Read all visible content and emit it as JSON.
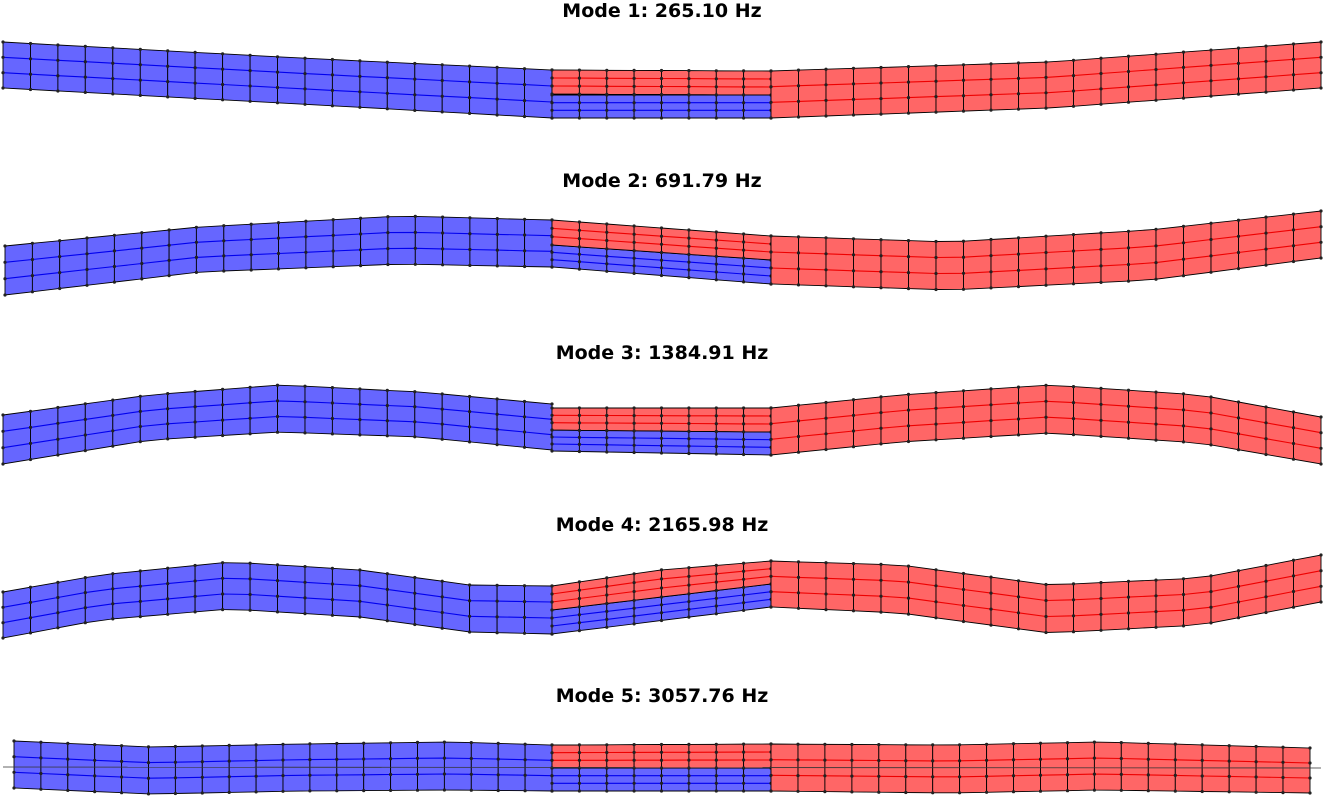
{
  "modes": [
    {
      "title": "Mode 1: 265.10 Hz"
    },
    {
      "title": "Mode 2: 691.79 Hz"
    },
    {
      "title": "Mode 3: 1384.91 Hz"
    },
    {
      "title": "Mode 4: 2165.98 Hz"
    },
    {
      "title": "Mode 5: 3057.76 Hz"
    }
  ],
  "colors": {
    "left_beam_fill": "#6666ff",
    "right_beam_fill": "#ff6666",
    "left_beam_line": "#0000ee",
    "right_beam_line": "#ee0000",
    "mesh_edge": "#000000"
  }
}
